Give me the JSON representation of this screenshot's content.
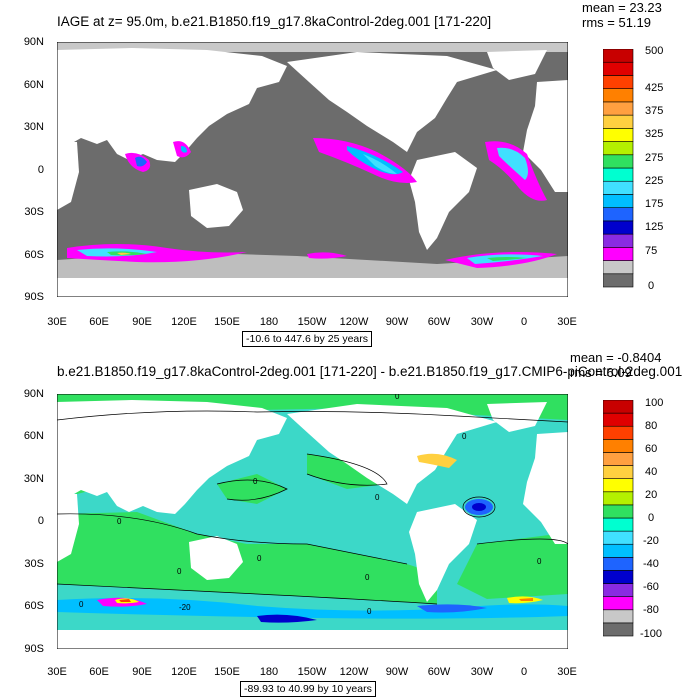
{
  "panel1": {
    "title": "IAGE at z=  95.0m, b.e21.B1850.f19_g17.8kaControl-2deg.001 [171-220]",
    "mean": "mean = 23.23",
    "rms": "rms = 51.19",
    "range_text": "-10.6 to 447.6 by 25 years",
    "lat_labels": [
      "90N",
      "60N",
      "30N",
      "0",
      "30S",
      "60S",
      "90S"
    ],
    "lon_labels": [
      "30E",
      "60E",
      "90E",
      "120E",
      "150E",
      "180",
      "150W",
      "120W",
      "90W",
      "60W",
      "30W",
      "0",
      "30E"
    ],
    "colorbar_labels": [
      "500",
      "425",
      "375",
      "325",
      "275",
      "225",
      "175",
      "125",
      "75",
      "0"
    ],
    "colors": [
      "#6c6c6c",
      "#c8c8c8",
      "#ff00ff",
      "#8a2be2",
      "#0000cd",
      "#1e64ff",
      "#00bfff",
      "#40e0ff",
      "#00ffd0",
      "#30e060",
      "#b4f000",
      "#ffff00",
      "#ffd040",
      "#ffa040",
      "#ff8000",
      "#ff4000",
      "#e00000",
      "#c80000"
    ],
    "land_color": "#ffffff",
    "ocean_color": "#6c6c6c"
  },
  "panel2": {
    "title": "b.e21.B1850.f19_g17.8kaControl-2deg.001 [171-220] - b.e21.B1850.f19_g17.CMIP6-piControl-2deg.001",
    "mean": "mean = -0.8404",
    "rms": "rms = 6.09",
    "range_text": "-89.93 to 40.99 by 10 years",
    "lat_labels": [
      "90N",
      "60N",
      "30N",
      "0",
      "30S",
      "60S",
      "90S"
    ],
    "lon_labels": [
      "30E",
      "60E",
      "90E",
      "120E",
      "150E",
      "180",
      "150W",
      "120W",
      "90W",
      "60W",
      "30W",
      "0",
      "30E"
    ],
    "colorbar_labels": [
      "100",
      "80",
      "60",
      "40",
      "20",
      "0",
      "-20",
      "-40",
      "-60",
      "-80",
      "-100"
    ],
    "colors": [
      "#6c6c6c",
      "#c8c8c8",
      "#ff00ff",
      "#8a2be2",
      "#0000cd",
      "#1e64ff",
      "#00bfff",
      "#40e0ff",
      "#00ffd0",
      "#30e060",
      "#b4f000",
      "#ffff00",
      "#ffd040",
      "#ffa040",
      "#ff8000",
      "#ff4000",
      "#e00000",
      "#c80000"
    ],
    "contour_labels": [
      "0",
      "0",
      "0",
      "0",
      "0",
      "0",
      "0",
      "0",
      "0",
      "-20",
      "0",
      "0"
    ],
    "ocean_color": "#3cd8c8",
    "land_color": "#ffffff"
  }
}
